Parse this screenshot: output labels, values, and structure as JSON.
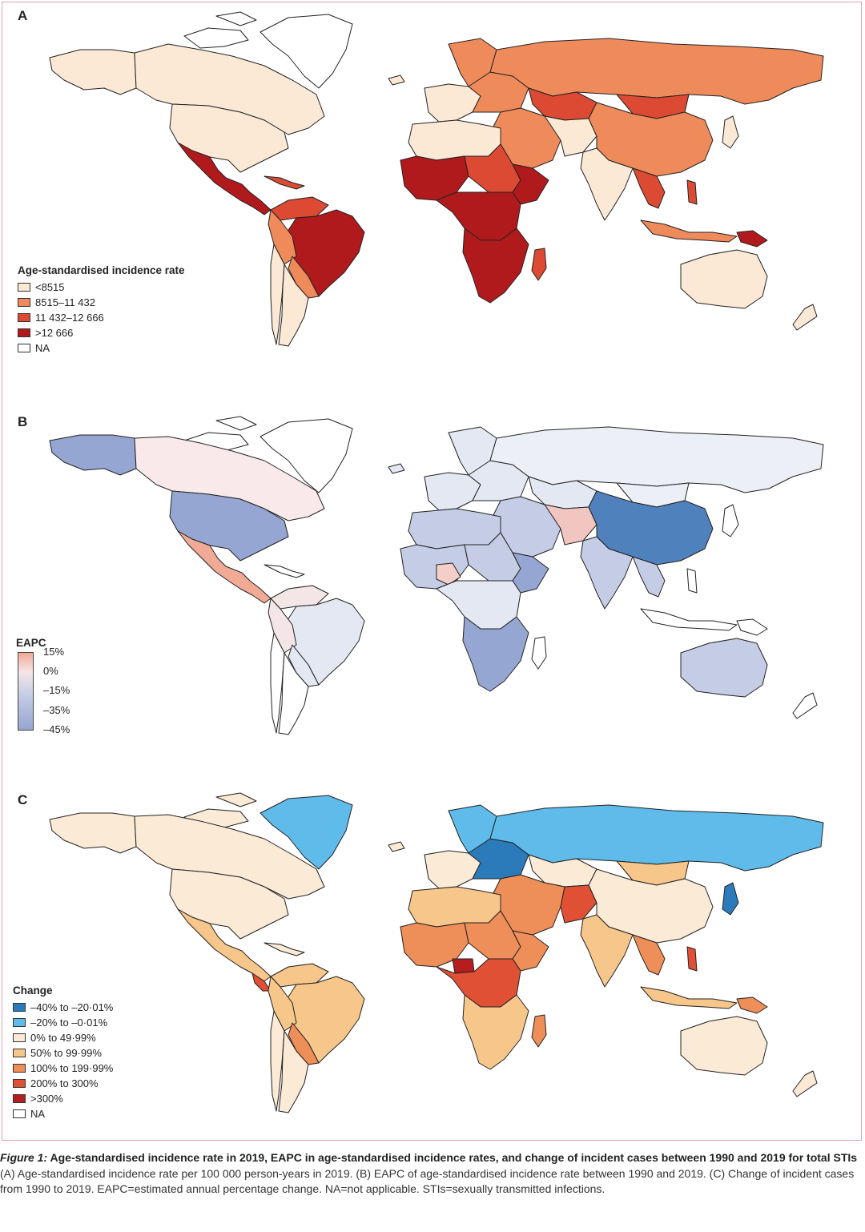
{
  "panels": {
    "a": {
      "letter": "A",
      "legend_title": "Age-standardised incidence rate",
      "legend": [
        {
          "label": "<8515",
          "color": "#fbe9d5"
        },
        {
          "label": "8515–11 432",
          "color": "#ef8a5b"
        },
        {
          "label": "11 432–12 666",
          "color": "#dc4a33"
        },
        {
          "label": ">12 666",
          "color": "#b11a1d"
        },
        {
          "label": "NA",
          "color": "#ffffff"
        }
      ]
    },
    "b": {
      "letter": "B",
      "legend_title": "EAPC",
      "ticks": [
        "15%",
        "0%",
        "–15%",
        "–35%",
        "–45%"
      ],
      "colors": {
        "high": "#f1aa95",
        "zero": "#f4e6e7",
        "mid": "#c4cde5",
        "low": "#96a6d2",
        "strong": "#4f81bd"
      }
    },
    "c": {
      "letter": "C",
      "legend_title": "Change",
      "legend": [
        {
          "label": "–40% to –20·01%",
          "color": "#2b7bba"
        },
        {
          "label": "–20% to –0·01%",
          "color": "#5ebbea"
        },
        {
          "label": "0% to 49·99%",
          "color": "#fbead6"
        },
        {
          "label": "50% to 99·99%",
          "color": "#f6c68a"
        },
        {
          "label": "100% to 199·99%",
          "color": "#ee8e58"
        },
        {
          "label": "200% to 300%",
          "color": "#df5034"
        },
        {
          "label": ">300%",
          "color": "#b51d1f"
        },
        {
          "label": "NA",
          "color": "#ffffff"
        }
      ]
    }
  },
  "caption": {
    "fig_label": "Figure 1:",
    "title": " Age-standardised incidence rate in 2019, EAPC in age-standardised incidence rates, and change of incident cases between 1990 and 2019 for total STIs",
    "body": "(A) Age-standardised incidence rate per 100 000 person-years in 2019. (B) EAPC of age-standardised incidence rate between 1990 and 2019. (C) Change of incident cases from 1990 to 2019. EAPC=estimated annual percentage change. NA=not applicable. STIs=sexually transmitted infections."
  }
}
